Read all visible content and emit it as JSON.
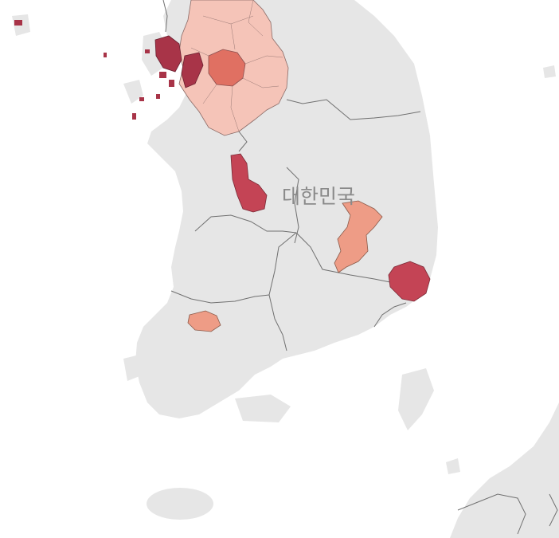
{
  "map": {
    "country_label": "대한민국",
    "colors": {
      "water": "#ffffff",
      "land": "#e6e6e6",
      "border": "#707070",
      "choropleth_light": "#f5c4b8",
      "choropleth_medium": "#ee9c86",
      "choropleth_strong": "#e07062",
      "choropleth_dark": "#c44455",
      "choropleth_darkest": "#a83448"
    }
  }
}
